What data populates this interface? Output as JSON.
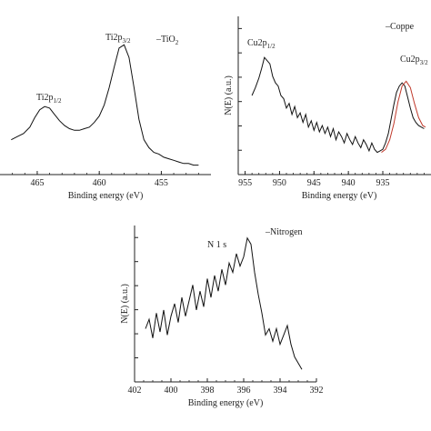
{
  "chart_data": [
    {
      "type": "line",
      "xlabel": "Binding energy (eV)",
      "ylabel": "",
      "xlim": [
        468,
        451
      ],
      "ylim": [
        0,
        1
      ],
      "reversed_x": true,
      "xticks": [
        "465",
        "460",
        "455"
      ],
      "legend": "–TiO",
      "legend_sub": "2",
      "annotations": [
        {
          "text": "Ti2p",
          "sub": "1/2",
          "x": 464.6,
          "y": 0.46
        },
        {
          "text": "Ti2p",
          "sub": "3/2",
          "x": 458.2,
          "y": 0.9
        }
      ],
      "series": [
        {
          "x": [
            467.1,
            466.6,
            466.1,
            465.6,
            465.2,
            464.8,
            464.4,
            464.0,
            463.6,
            463.2,
            462.8,
            462.4,
            462.0,
            461.6,
            461.2,
            460.8,
            460.4,
            460.0,
            459.6,
            459.2,
            458.8,
            458.4,
            458.0,
            457.6,
            457.2,
            456.8,
            456.4,
            456.0,
            455.6,
            455.2,
            454.8,
            454.4,
            454.0,
            453.6,
            453.2,
            452.8,
            452.4,
            452.0
          ],
          "y": [
            0.22,
            0.24,
            0.26,
            0.3,
            0.36,
            0.41,
            0.43,
            0.42,
            0.38,
            0.34,
            0.31,
            0.29,
            0.28,
            0.28,
            0.29,
            0.3,
            0.33,
            0.37,
            0.44,
            0.55,
            0.68,
            0.8,
            0.82,
            0.74,
            0.55,
            0.35,
            0.22,
            0.17,
            0.14,
            0.13,
            0.11,
            0.1,
            0.09,
            0.08,
            0.07,
            0.07,
            0.06,
            0.06
          ]
        }
      ]
    },
    {
      "type": "line",
      "xlabel": "Binding energy (eV)",
      "ylabel": "N(E) (a.u.)",
      "xlim": [
        956,
        928
      ],
      "ylim": [
        0,
        1
      ],
      "reversed_x": true,
      "xticks": [
        "955",
        "950",
        "945",
        "940",
        "935"
      ],
      "legend": "–Coppe",
      "annotations": [
        {
          "text": "Cu2p",
          "sub": "1/2",
          "x": 953.0,
          "y": 0.84
        },
        {
          "text": "Cu2p",
          "sub": "3/2",
          "x": 931.5,
          "y": 0.66
        }
      ],
      "series": [
        {
          "x": [
            954.0,
            953.5,
            953.0,
            952.6,
            952.2,
            951.8,
            951.4,
            951.0,
            950.6,
            950.2,
            949.8,
            949.4,
            949.0,
            948.6,
            948.2,
            947.8,
            947.4,
            947.0,
            946.6,
            946.2,
            945.8,
            945.4,
            945.0,
            944.6,
            944.2,
            943.8,
            943.4,
            943.0,
            942.6,
            942.2,
            941.8,
            941.4,
            941.0,
            940.6,
            940.2,
            939.8,
            939.4,
            939.0,
            938.6,
            938.2,
            937.8,
            937.4,
            937.0,
            936.6,
            936.2,
            935.8,
            935.4,
            935.0,
            934.6,
            934.2,
            933.8,
            933.4,
            933.0,
            932.6,
            932.2,
            931.8,
            931.4,
            931.0,
            930.6,
            930.2,
            929.8,
            929.4,
            929.0
          ],
          "y": [
            0.5,
            0.55,
            0.61,
            0.67,
            0.74,
            0.72,
            0.7,
            0.62,
            0.58,
            0.56,
            0.5,
            0.48,
            0.42,
            0.45,
            0.38,
            0.43,
            0.36,
            0.39,
            0.33,
            0.38,
            0.3,
            0.34,
            0.28,
            0.33,
            0.27,
            0.31,
            0.26,
            0.3,
            0.24,
            0.29,
            0.22,
            0.27,
            0.24,
            0.2,
            0.26,
            0.22,
            0.19,
            0.24,
            0.2,
            0.17,
            0.22,
            0.19,
            0.15,
            0.2,
            0.16,
            0.14,
            0.15,
            0.16,
            0.2,
            0.26,
            0.35,
            0.44,
            0.52,
            0.56,
            0.58,
            0.56,
            0.49,
            0.42,
            0.36,
            0.33,
            0.31,
            0.3,
            0.29
          ]
        },
        {
          "x": [
            935.2,
            934.6,
            934.0,
            933.4,
            932.8,
            932.2,
            931.6,
            931.0,
            930.4,
            929.8,
            929.2,
            928.8
          ],
          "y": [
            0.14,
            0.16,
            0.22,
            0.32,
            0.46,
            0.56,
            0.59,
            0.55,
            0.45,
            0.36,
            0.31,
            0.3
          ],
          "color": "#c0392b"
        }
      ]
    },
    {
      "type": "line",
      "xlabel": "Binding energy (eV)",
      "ylabel": "N(E) (a.u.)",
      "xlim": [
        402,
        392
      ],
      "ylim": [
        0,
        1
      ],
      "reversed_x": true,
      "xticks": [
        "402",
        "400",
        "398",
        "396",
        "394",
        "392"
      ],
      "legend": "–Nitrogen",
      "annotations": [
        {
          "text": "N 1 s",
          "x": 397.8,
          "y": 0.86
        }
      ],
      "series": [
        {
          "x": [
            401.4,
            401.2,
            401.0,
            400.8,
            400.6,
            400.4,
            400.2,
            400.0,
            399.8,
            399.6,
            399.4,
            399.2,
            399.0,
            398.8,
            398.6,
            398.4,
            398.2,
            398.0,
            397.8,
            397.6,
            397.4,
            397.2,
            397.0,
            396.8,
            396.6,
            396.4,
            396.2,
            396.0,
            395.8,
            395.6,
            395.4,
            395.2,
            395.0,
            394.8,
            394.6,
            394.4,
            394.2,
            394.0,
            393.8,
            393.6,
            393.4,
            393.2,
            393.0,
            392.8
          ],
          "y": [
            0.34,
            0.4,
            0.28,
            0.44,
            0.32,
            0.46,
            0.3,
            0.42,
            0.5,
            0.38,
            0.54,
            0.42,
            0.52,
            0.62,
            0.46,
            0.58,
            0.48,
            0.66,
            0.54,
            0.68,
            0.58,
            0.72,
            0.62,
            0.76,
            0.7,
            0.82,
            0.74,
            0.8,
            0.92,
            0.88,
            0.7,
            0.56,
            0.44,
            0.3,
            0.34,
            0.26,
            0.34,
            0.24,
            0.3,
            0.36,
            0.24,
            0.16,
            0.12,
            0.08
          ]
        }
      ]
    }
  ]
}
